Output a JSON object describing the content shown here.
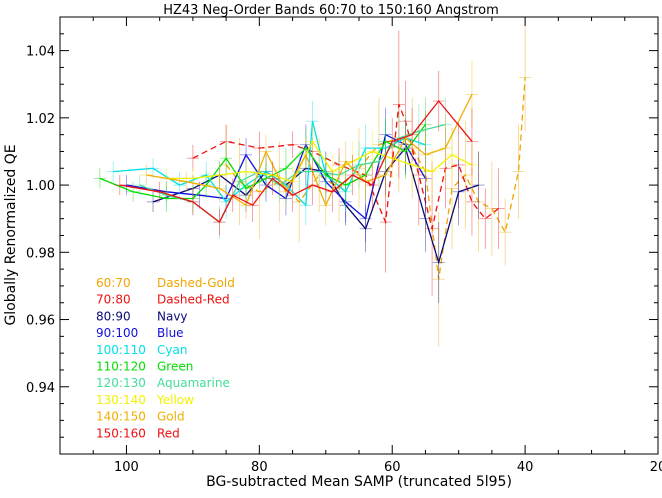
{
  "chart_data": {
    "type": "line",
    "title": "HZ43 Neg-Order Bands 60:70 to 150:160 Angstrom",
    "xlabel": "BG-subtracted Mean SAMP (truncated 5l95)",
    "ylabel": "Globally Renormalized QE",
    "xlim": [
      110,
      20
    ],
    "ylim": [
      0.92,
      1.05
    ],
    "x_ticks": [
      100,
      80,
      60,
      40,
      20
    ],
    "x_tick_labels": [
      "100",
      "80",
      "60",
      "40",
      "20"
    ],
    "y_ticks": [
      0.94,
      0.96,
      0.98,
      1.0,
      1.02,
      1.04
    ],
    "y_tick_labels": [
      "0.94",
      "0.96",
      "0.98",
      "1.00",
      "1.02",
      "1.04"
    ],
    "grid": false,
    "legend_position": "lower-left",
    "legend": [
      {
        "band": "60:70",
        "style": "Dashed-Gold",
        "color": "#f0a500",
        "dashed": true
      },
      {
        "band": "70:80",
        "style": "Dashed-Red",
        "color": "#ee1111",
        "dashed": true
      },
      {
        "band": "80:90",
        "style": "Navy",
        "color": "#0a0a78",
        "dashed": false
      },
      {
        "band": "90:100",
        "style": "Blue",
        "color": "#1010dd",
        "dashed": false
      },
      {
        "band": "100:110",
        "style": "Cyan",
        "color": "#00e0e8",
        "dashed": false
      },
      {
        "band": "110:120",
        "style": "Green",
        "color": "#00dd00",
        "dashed": false
      },
      {
        "band": "120:130",
        "style": "Aquamarine",
        "color": "#44dd99",
        "dashed": false
      },
      {
        "band": "130:140",
        "style": "Yellow",
        "color": "#f2f200",
        "dashed": false
      },
      {
        "band": "140:150",
        "style": "Gold",
        "color": "#f0b000",
        "dashed": false
      },
      {
        "band": "150:160",
        "style": "Red",
        "color": "#ee1111",
        "dashed": false
      }
    ],
    "series": [
      {
        "color": "#f0a500",
        "dashed": true,
        "x": [
          85,
          83,
          80,
          77,
          74,
          71,
          68,
          65,
          62,
          59,
          57,
          55,
          53,
          51,
          49,
          47,
          45,
          43,
          41,
          40
        ],
        "y": [
          1.006,
          1.001,
          0.998,
          1.001,
          0.995,
          1.003,
          0.999,
          1.005,
          1.012,
          1.014,
          1.011,
          1.004,
          0.972,
          0.999,
          1.003,
          0.995,
          0.993,
          0.986,
          1.004,
          1.032
        ],
        "err": [
          0.012,
          0.013,
          0.014,
          0.012,
          0.012,
          0.011,
          0.01,
          0.012,
          0.014,
          0.016,
          0.015,
          0.018,
          0.02,
          0.018,
          0.016,
          0.015,
          0.014,
          0.01,
          0.014,
          0.016
        ]
      },
      {
        "color": "#ee1111",
        "dashed": true,
        "x": [
          90,
          85,
          80,
          75,
          72,
          68,
          64,
          61,
          59,
          58,
          56,
          54,
          52,
          50,
          48,
          46,
          44
        ],
        "y": [
          1.008,
          1.013,
          1.011,
          1.012,
          1.01,
          1.006,
          1.003,
          0.989,
          1.024,
          1.019,
          1.003,
          0.987,
          1.005,
          1.006,
          0.995,
          0.99,
          0.993
        ],
        "err": [
          0.004,
          0.005,
          0.005,
          0.004,
          0.004,
          0.005,
          0.006,
          0.015,
          0.022,
          0.012,
          0.015,
          0.02,
          0.012,
          0.013,
          0.01,
          0.009,
          0.012
        ]
      },
      {
        "color": "#0a0a78",
        "dashed": false,
        "x": [
          96,
          90,
          86,
          82,
          79,
          76,
          73,
          70,
          67,
          64,
          61,
          58,
          55,
          53,
          50,
          47
        ],
        "y": [
          0.995,
          0.999,
          1.003,
          0.997,
          1.004,
          1.0,
          1.005,
          1.004,
          0.994,
          0.987,
          1.004,
          1.011,
          0.99,
          0.977,
          0.998,
          1.0
        ],
        "err": [
          0.003,
          0.004,
          0.004,
          0.005,
          0.005,
          0.005,
          0.005,
          0.006,
          0.006,
          0.007,
          0.007,
          0.008,
          0.01,
          0.012,
          0.01,
          0.01
        ]
      },
      {
        "color": "#1010dd",
        "dashed": false,
        "x": [
          100,
          94,
          89,
          85,
          82,
          79,
          76,
          73,
          70,
          67,
          64,
          61,
          58,
          55
        ],
        "y": [
          1.0,
          0.998,
          0.997,
          0.996,
          1.009,
          1.0,
          0.996,
          1.012,
          1.001,
          0.995,
          0.99,
          1.015,
          1.012,
          1.002
        ],
        "err": [
          0.003,
          0.003,
          0.004,
          0.004,
          0.005,
          0.005,
          0.005,
          0.006,
          0.006,
          0.006,
          0.007,
          0.008,
          0.008,
          0.01
        ]
      },
      {
        "color": "#00e0e8",
        "dashed": false,
        "x": [
          102,
          96,
          92,
          88,
          85,
          82,
          79,
          76,
          73,
          72,
          70,
          67,
          64,
          61,
          58,
          55
        ],
        "y": [
          1.004,
          1.005,
          1.0,
          1.003,
          0.995,
          1.0,
          1.004,
          1.0,
          0.994,
          1.019,
          1.003,
          0.998,
          1.011,
          1.011,
          1.014,
          1.012
        ],
        "err": [
          0.003,
          0.003,
          0.004,
          0.004,
          0.005,
          0.005,
          0.005,
          0.006,
          0.006,
          0.006,
          0.006,
          0.006,
          0.007,
          0.008,
          0.008,
          0.009
        ]
      },
      {
        "color": "#00dd00",
        "dashed": false,
        "x": [
          104,
          99,
          94,
          90,
          88,
          85,
          82,
          79,
          76,
          73,
          70,
          67,
          64,
          61,
          58,
          55
        ],
        "y": [
          1.002,
          0.998,
          0.996,
          0.996,
          1.0,
          1.008,
          0.999,
          1.002,
          1.005,
          1.011,
          1.003,
          1.0,
          1.003,
          1.013,
          1.01,
          1.018
        ],
        "err": [
          0.003,
          0.003,
          0.004,
          0.004,
          0.004,
          0.005,
          0.005,
          0.005,
          0.006,
          0.006,
          0.006,
          0.006,
          0.007,
          0.007,
          0.008,
          0.008
        ]
      },
      {
        "color": "#44dd99",
        "dashed": false,
        "x": [
          98,
          94,
          90,
          86,
          83,
          80,
          77,
          74,
          71,
          68,
          65,
          62,
          59,
          56,
          52
        ],
        "y": [
          1.0,
          0.997,
          0.995,
          0.989,
          1.001,
          1.004,
          1.0,
          1.004,
          1.004,
          1.003,
          1.006,
          1.007,
          1.014,
          1.016,
          1.018
        ],
        "err": [
          0.003,
          0.004,
          0.004,
          0.005,
          0.005,
          0.005,
          0.005,
          0.006,
          0.006,
          0.006,
          0.007,
          0.007,
          0.007,
          0.008,
          0.008
        ]
      },
      {
        "color": "#f2f200",
        "dashed": false,
        "x": [
          94,
          90,
          86,
          82,
          78,
          75,
          72,
          69,
          66,
          63,
          60,
          57,
          54,
          51,
          48
        ],
        "y": [
          1.002,
          1.002,
          1.003,
          1.004,
          1.003,
          1.001,
          1.013,
          1.004,
          1.007,
          1.01,
          1.008,
          1.006,
          1.004,
          1.009,
          1.006
        ],
        "err": [
          0.003,
          0.003,
          0.004,
          0.004,
          0.004,
          0.005,
          0.005,
          0.005,
          0.006,
          0.006,
          0.006,
          0.007,
          0.007,
          0.008,
          0.008
        ]
      },
      {
        "color": "#f0b000",
        "dashed": false,
        "x": [
          97,
          91,
          86,
          82,
          79,
          76,
          73,
          70,
          67,
          64,
          61,
          58,
          55,
          52,
          48
        ],
        "y": [
          1.003,
          1.001,
          0.999,
          0.994,
          1.01,
          0.998,
          1.009,
          0.994,
          1.007,
          1.001,
          1.003,
          1.014,
          1.009,
          1.011,
          1.027
        ],
        "err": [
          0.003,
          0.003,
          0.004,
          0.004,
          0.005,
          0.005,
          0.005,
          0.006,
          0.006,
          0.006,
          0.007,
          0.008,
          0.008,
          0.01,
          0.01
        ]
      },
      {
        "color": "#ee1111",
        "dashed": false,
        "x": [
          101,
          95,
          90,
          86,
          84,
          81,
          78,
          75,
          72,
          69,
          66,
          63,
          60,
          57,
          53,
          48
        ],
        "y": [
          1.0,
          0.998,
          0.995,
          0.989,
          0.997,
          0.994,
          1.002,
          0.997,
          1.0,
          0.998,
          1.003,
          1.0,
          1.013,
          1.015,
          1.025,
          1.013
        ],
        "err": [
          0.003,
          0.003,
          0.004,
          0.004,
          0.005,
          0.005,
          0.005,
          0.005,
          0.006,
          0.006,
          0.006,
          0.007,
          0.007,
          0.008,
          0.009,
          0.01
        ]
      }
    ]
  }
}
